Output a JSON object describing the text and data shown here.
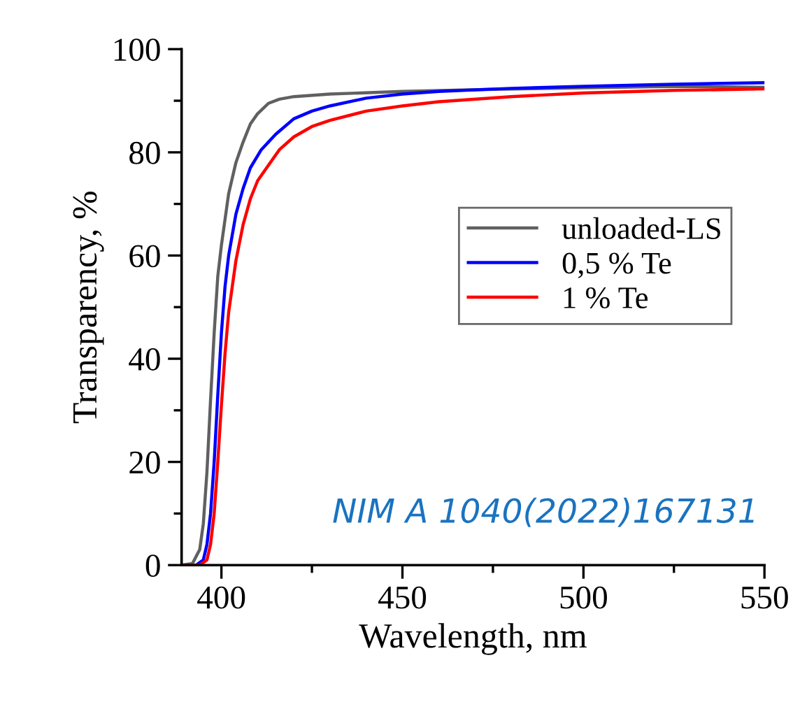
{
  "chart_data": {
    "type": "line",
    "xlabel": "Wavelength, nm",
    "ylabel": "Transparency, %",
    "xlim": [
      389,
      550
    ],
    "ylim": [
      0,
      100
    ],
    "xticks": [
      400,
      450,
      500,
      550
    ],
    "yticks": [
      0,
      20,
      40,
      60,
      80,
      100
    ],
    "grid": false,
    "legend": "right",
    "annotations": [
      "NIM A 1040(2022)167131"
    ],
    "series": [
      {
        "name": "unloaded-LS",
        "color": "#606060",
        "x": [
          389,
          392,
          394,
          395,
          396,
          397,
          398,
          399,
          400,
          401,
          402,
          404,
          406,
          408,
          410,
          413,
          416,
          420,
          430,
          450,
          475,
          500,
          525,
          550
        ],
        "values": [
          0,
          0.3,
          3,
          8,
          18,
          32,
          45,
          56,
          62,
          67,
          72,
          78,
          82,
          85.5,
          87.5,
          89.5,
          90.3,
          90.8,
          91.3,
          91.8,
          92.2,
          92.5,
          92.8,
          92.6
        ]
      },
      {
        "name": "0,5 % Te",
        "color": "#0000ff",
        "x": [
          389,
          393,
          395,
          396,
          397,
          398,
          399,
          400,
          401,
          402,
          404,
          406,
          408,
          411,
          415,
          420,
          425,
          430,
          440,
          450,
          460,
          480,
          500,
          525,
          550
        ],
        "values": [
          0,
          0,
          1,
          4,
          10,
          20,
          33,
          45,
          54,
          60,
          68,
          73,
          77,
          80.5,
          83.5,
          86.5,
          88,
          89,
          90.5,
          91.3,
          91.8,
          92.4,
          92.8,
          93.2,
          93.5
        ]
      },
      {
        "name": "1 % Te",
        "color": "#ff0000",
        "x": [
          389,
          394,
          396,
          397,
          398,
          399,
          400,
          401,
          402,
          404,
          406,
          408,
          410,
          413,
          416,
          420,
          425,
          430,
          440,
          450,
          460,
          480,
          500,
          525,
          550
        ],
        "values": [
          0,
          0,
          1,
          4,
          10,
          20,
          31,
          41,
          49,
          59,
          66,
          71,
          74.5,
          77.5,
          80.5,
          83,
          85,
          86.2,
          88,
          89,
          89.8,
          90.8,
          91.5,
          92,
          92.3
        ]
      }
    ]
  }
}
